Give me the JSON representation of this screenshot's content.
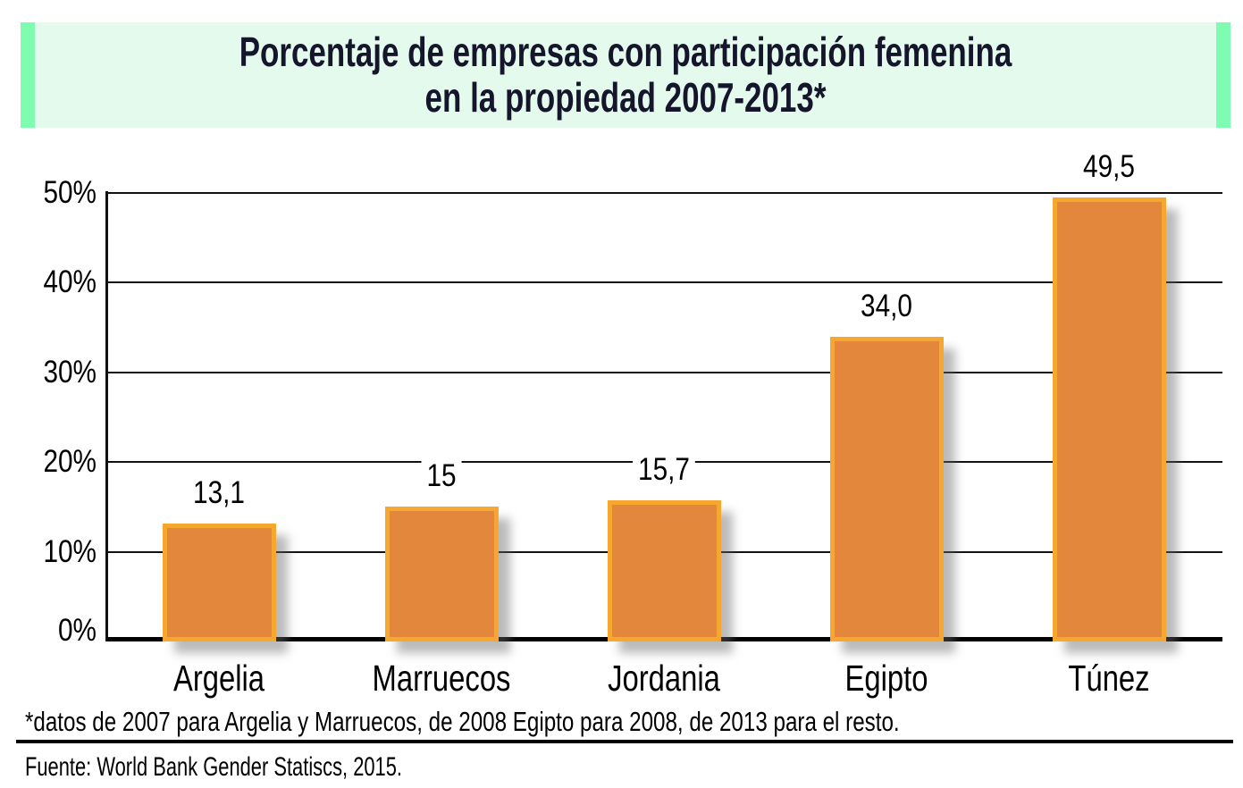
{
  "banner": {
    "line1": "Porcentaje de empresas con participación femenina",
    "line2": "en la propiedad 2007-2013*",
    "bg_color": "#E3FAEC",
    "strip_color": "#7EFCAF",
    "text_color": "#15152B"
  },
  "chart_data": {
    "type": "bar",
    "title": "Porcentaje de empresas con participación femenina en la propiedad 2007-2013*",
    "categories": [
      "Argelia",
      "Marruecos",
      "Jordania",
      "Egipto",
      "Túnez"
    ],
    "values": [
      13.1,
      15,
      15.7,
      34.0,
      49.5
    ],
    "value_labels": [
      "13,1",
      "15",
      "15,7",
      "34,0",
      "49,5"
    ],
    "xlabel": "",
    "ylabel": "",
    "ylim": [
      0,
      50
    ],
    "ytick_values": [
      0,
      10,
      20,
      30,
      40,
      50
    ],
    "ytick_labels": [
      "0%",
      "10%",
      "20%",
      "30%",
      "40%",
      "50%"
    ],
    "grid": true,
    "legend": "none",
    "bar_fill": "#E2873B",
    "bar_border": "#F6A72F",
    "gridline_color": "#111111"
  },
  "footnote": "*datos de 2007 para Argelia y Marruecos, de 2008 Egipto para 2008, de 2013 para el resto.",
  "source": "Fuente: World Bank Gender Statiscs, 2015."
}
